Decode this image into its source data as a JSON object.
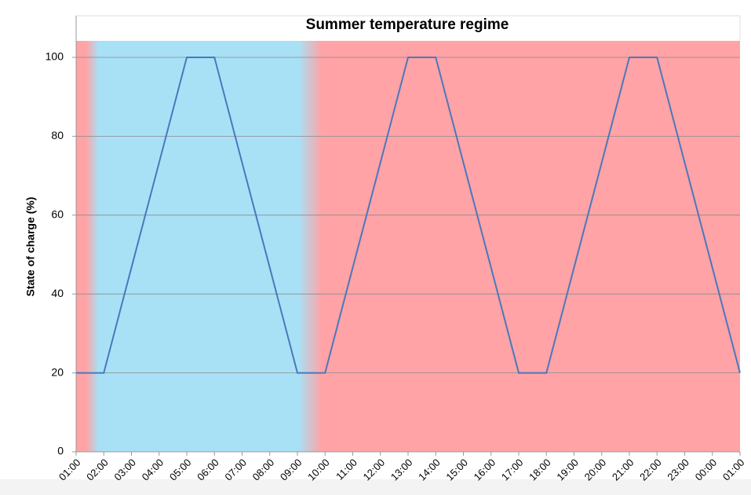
{
  "chart_data": {
    "type": "line",
    "title": "Summer temperature regime",
    "y_label": "State of charge (%)",
    "categories": [
      "01:00",
      "02:00",
      "03:00",
      "04:00",
      "05:00",
      "06:00",
      "07:00",
      "08:00",
      "09:00",
      "10:00",
      "11:00",
      "12:00",
      "13:00",
      "14:00",
      "15:00",
      "16:00",
      "17:00",
      "18:00",
      "19:00",
      "20:00",
      "21:00",
      "22:00",
      "23:00",
      "00:00",
      "01:00"
    ],
    "values": [
      20,
      20,
      46.7,
      73.3,
      100,
      100,
      73.3,
      46.7,
      20,
      20,
      46.7,
      73.3,
      100,
      100,
      73.3,
      46.7,
      20,
      20,
      46.7,
      73.3,
      100,
      100,
      73.3,
      46.7,
      20
    ],
    "color": "#4a78bd",
    "ylim": [
      0,
      100
    ],
    "yticks": [
      0,
      20,
      40,
      60,
      80,
      100
    ],
    "grid": true
  }
}
